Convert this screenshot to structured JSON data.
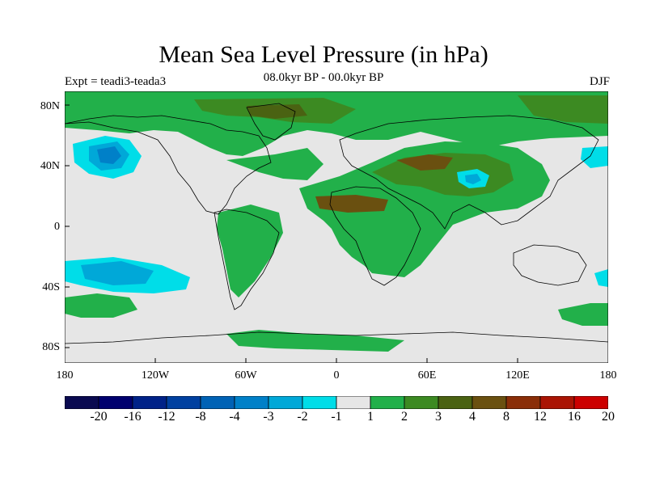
{
  "title": "Mean Sea Level Pressure (in hPa)",
  "subtitle": "08.0kyr BP - 00.0kyr BP",
  "experiment_label": "Expt = teadi3-teada3",
  "season_label": "DJF",
  "axes": {
    "lat_ticks": [
      "80N",
      "40N",
      "0",
      "40S",
      "80S"
    ],
    "lon_ticks": [
      "180",
      "120W",
      "60W",
      "0",
      "60E",
      "120E",
      "180"
    ]
  },
  "colorbar": {
    "labels": [
      "-20",
      "-16",
      "-12",
      "-8",
      "-4",
      "-3",
      "-2",
      "-1",
      "1",
      "2",
      "3",
      "4",
      "8",
      "12",
      "16",
      "20"
    ],
    "colors": [
      "#0a0a50",
      "#00006e",
      "#002288",
      "#0040a0",
      "#0062b5",
      "#0080c8",
      "#00a8d8",
      "#00dde8",
      "#e6e6e6",
      "#22b04a",
      "#3c8a22",
      "#4a6212",
      "#6a5010",
      "#8a2e08",
      "#aa1404",
      "#cc0000"
    ]
  },
  "colors": {
    "ocean_neutral": "#e6e6e6",
    "low_light": "#00dde8",
    "low_mid": "#00a8d8",
    "low_deep": "#0080c8",
    "high_light": "#22b04a",
    "high_mid": "#3c8a22",
    "high_deep": "#6a5010"
  }
}
